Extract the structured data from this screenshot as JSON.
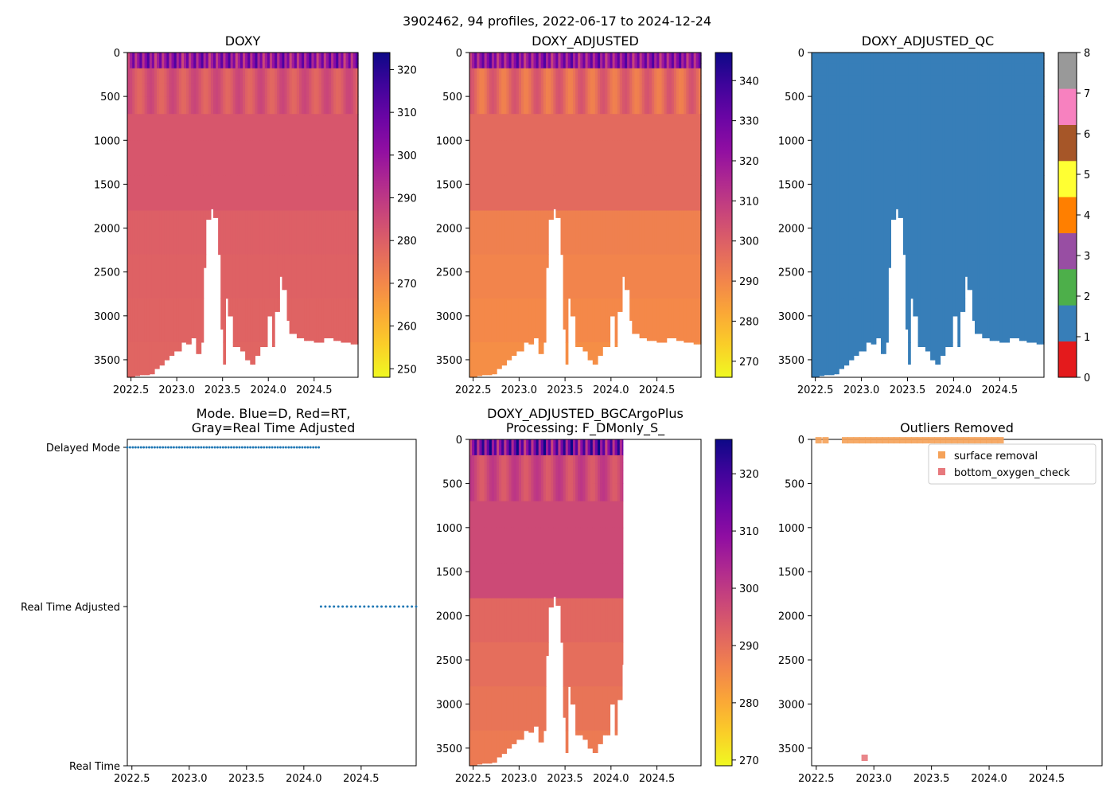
{
  "figure_title": "3902462, 94 profiles, 2022-06-17 to 2024-12-24",
  "chart_data": [
    {
      "id": "doxy",
      "type": "heatmap",
      "title": "DOXY",
      "x_ticks": [
        "2022.5",
        "2023.0",
        "2023.5",
        "2024.0",
        "2024.5"
      ],
      "x_tick_values": [
        2022.5,
        2023.0,
        2023.5,
        2024.0,
        2024.5
      ],
      "xlim": [
        2022.46,
        2024.98
      ],
      "y_ticks": [
        "0",
        "500",
        "1000",
        "1500",
        "2000",
        "2500",
        "3000",
        "3500"
      ],
      "y_tick_values": [
        0,
        500,
        1000,
        1500,
        2000,
        2500,
        3000,
        3500
      ],
      "ylim": [
        3700,
        0
      ],
      "colormap": "plasma_r",
      "colorbar_ticks": [
        "250",
        "260",
        "270",
        "280",
        "290",
        "300",
        "310",
        "320"
      ],
      "colorbar_tick_values": [
        250,
        260,
        270,
        280,
        290,
        300,
        310,
        320
      ],
      "colorbar_range": [
        248,
        324
      ],
      "deep_value": 278,
      "mid_value": 282,
      "surface_value": 300
    },
    {
      "id": "doxy_adjusted",
      "type": "heatmap",
      "title": "DOXY_ADJUSTED",
      "x_ticks": [
        "2022.5",
        "2023.0",
        "2023.5",
        "2024.0",
        "2024.5"
      ],
      "x_tick_values": [
        2022.5,
        2023.0,
        2023.5,
        2024.0,
        2024.5
      ],
      "xlim": [
        2022.46,
        2024.98
      ],
      "y_ticks": [
        "0",
        "500",
        "1000",
        "1500",
        "2000",
        "2500",
        "3000",
        "3500"
      ],
      "y_tick_values": [
        0,
        500,
        1000,
        1500,
        2000,
        2500,
        3000,
        3500
      ],
      "ylim": [
        3700,
        0
      ],
      "colormap": "plasma_r",
      "colorbar_ticks": [
        "270",
        "280",
        "290",
        "300",
        "310",
        "320",
        "330",
        "340"
      ],
      "colorbar_tick_values": [
        270,
        280,
        290,
        300,
        310,
        320,
        330,
        340
      ],
      "colorbar_range": [
        266,
        347
      ],
      "deep_value": 287,
      "mid_value": 297,
      "surface_value": 322
    },
    {
      "id": "doxy_adjusted_qc",
      "type": "heatmap",
      "title": "DOXY_ADJUSTED_QC",
      "x_ticks": [
        "2022.5",
        "2023.0",
        "2023.5",
        "2024.0",
        "2024.5"
      ],
      "x_tick_values": [
        2022.5,
        2023.0,
        2023.5,
        2024.0,
        2024.5
      ],
      "xlim": [
        2022.46,
        2024.98
      ],
      "y_ticks": [
        "0",
        "500",
        "1000",
        "1500",
        "2000",
        "2500",
        "3000",
        "3500"
      ],
      "y_tick_values": [
        0,
        500,
        1000,
        1500,
        2000,
        2500,
        3000,
        3500
      ],
      "ylim": [
        3700,
        0
      ],
      "qc_value": 1,
      "colorbar_ticks": [
        "0",
        "1",
        "2",
        "3",
        "4",
        "5",
        "6",
        "7",
        "8"
      ],
      "colorbar_tick_values": [
        0,
        1,
        2,
        3,
        4,
        5,
        6,
        7,
        8
      ],
      "qc_colors": [
        "#e41a1c",
        "#377eb8",
        "#4daf4a",
        "#984ea3",
        "#ff7f00",
        "#ffff33",
        "#a65628",
        "#f781bf",
        "#999999"
      ]
    },
    {
      "id": "mode",
      "type": "scatter",
      "title_line1": "Mode. Blue=D, Red=RT,",
      "title_line2": "Gray=Real Time Adjusted",
      "x_ticks": [
        "2022.5",
        "2023.0",
        "2023.5",
        "2024.0",
        "2024.5"
      ],
      "x_tick_values": [
        2022.5,
        2023.0,
        2023.5,
        2024.0,
        2024.5
      ],
      "xlim": [
        2022.46,
        2024.98
      ],
      "y_categories": [
        "Real Time",
        "Real Time Adjusted",
        "Delayed Mode"
      ],
      "series": [
        {
          "name": "Delayed Mode",
          "y_index": 2,
          "x_start": 2022.46,
          "x_end": 2024.13,
          "count": 71
        },
        {
          "name": "Real Time Adjusted",
          "y_index": 1,
          "x_start": 2024.15,
          "x_end": 2024.98,
          "count": 23
        }
      ],
      "color": "#1f77b4"
    },
    {
      "id": "bgc",
      "type": "heatmap",
      "title_line1": "DOXY_ADJUSTED_BGCArgoPlus",
      "title_line2": "Processing: F_DMonly_S_",
      "x_ticks": [
        "2022.5",
        "2023.0",
        "2023.5",
        "2024.0",
        "2024.5"
      ],
      "x_tick_values": [
        2022.5,
        2023.0,
        2023.5,
        2024.0,
        2024.5
      ],
      "xlim": [
        2022.46,
        2024.98
      ],
      "data_x_end": 2024.13,
      "y_ticks": [
        "0",
        "500",
        "1000",
        "1500",
        "2000",
        "2500",
        "3000",
        "3500"
      ],
      "y_tick_values": [
        0,
        500,
        1000,
        1500,
        2000,
        2500,
        3000,
        3500
      ],
      "ylim": [
        3700,
        0
      ],
      "colormap": "plasma_r",
      "colorbar_ticks": [
        "270",
        "280",
        "290",
        "300",
        "310",
        "320"
      ],
      "colorbar_tick_values": [
        270,
        280,
        290,
        300,
        310,
        320
      ],
      "colorbar_range": [
        269,
        326
      ],
      "deep_value": 287,
      "mid_value": 297,
      "surface_value": 312
    },
    {
      "id": "outliers",
      "type": "scatter",
      "title": "Outliers Removed",
      "x_ticks": [
        "2022.5",
        "2023.0",
        "2023.5",
        "2024.0",
        "2024.5"
      ],
      "x_tick_values": [
        2022.5,
        2023.0,
        2023.5,
        2024.0,
        2024.5
      ],
      "xlim": [
        2022.46,
        2024.98
      ],
      "y_ticks": [
        "0",
        "500",
        "1000",
        "1500",
        "2000",
        "2500",
        "3000",
        "3500"
      ],
      "y_tick_values": [
        0,
        500,
        1000,
        1500,
        2000,
        2500,
        3000,
        3500
      ],
      "ylim": [
        3700,
        0
      ],
      "legend": [
        "surface removal",
        "bottom_oxygen_check"
      ],
      "legend_loc": "upper right",
      "series": [
        {
          "name": "surface removal",
          "color": "#f5a259",
          "x": [
            2022.52,
            2022.58,
            2022.75,
            2022.8,
            2022.85,
            2022.9,
            2022.95,
            2023.0,
            2023.05,
            2023.1,
            2023.15,
            2023.2,
            2023.25,
            2023.3,
            2023.35,
            2023.4,
            2023.45,
            2023.5,
            2023.55,
            2023.6,
            2023.65,
            2023.7,
            2023.75,
            2023.8,
            2023.85,
            2023.9,
            2023.95,
            2024.0,
            2024.05,
            2024.1
          ],
          "y": [
            10,
            10,
            10,
            10,
            10,
            10,
            10,
            10,
            10,
            10,
            10,
            10,
            10,
            10,
            10,
            10,
            10,
            10,
            10,
            10,
            10,
            10,
            10,
            10,
            10,
            10,
            10,
            10,
            10,
            10
          ]
        },
        {
          "name": "bottom_oxygen_check",
          "color": "#e7797d",
          "x": [
            2022.92
          ],
          "y": [
            3610
          ]
        }
      ]
    }
  ]
}
